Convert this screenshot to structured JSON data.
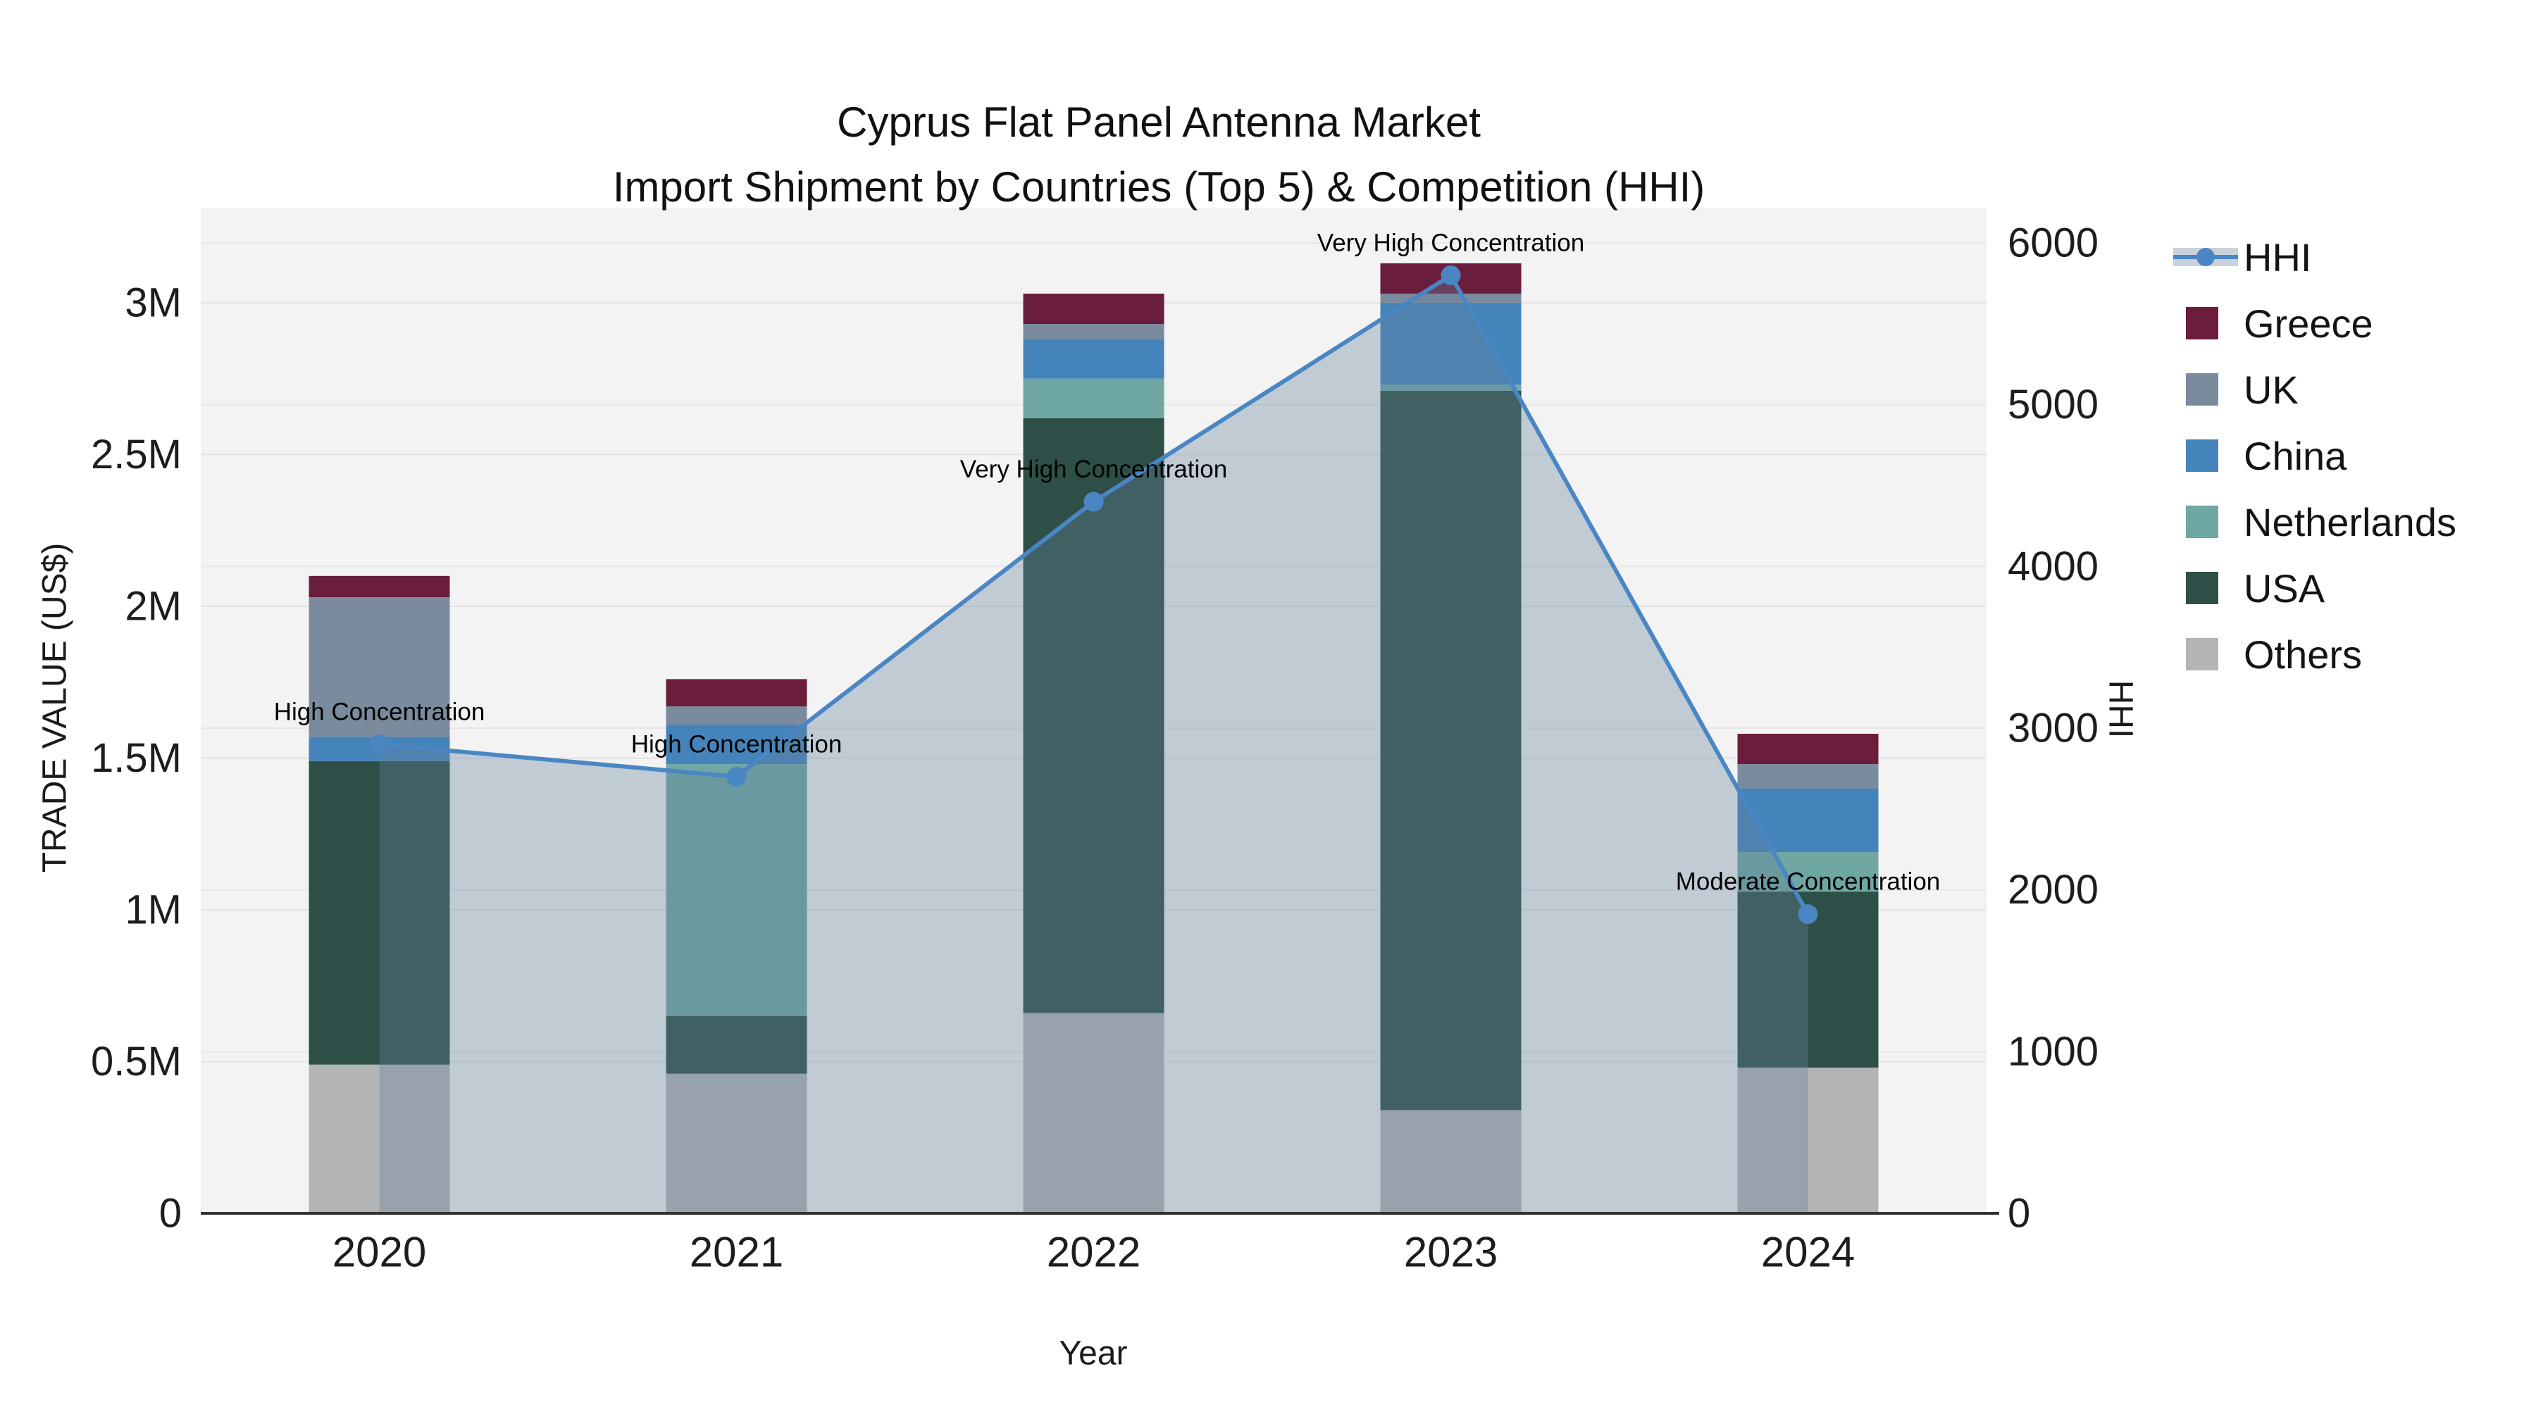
{
  "title": {
    "line1": "Cyprus Flat Panel Antenna Market",
    "line2": "Import Shipment by Countries (Top 5) & Competition (HHI)"
  },
  "axes": {
    "y_left": {
      "title": "TRADE VALUE (US$)",
      "tick_labels": [
        "0",
        "0.5M",
        "1M",
        "1.5M",
        "2M",
        "2.5M",
        "3M"
      ],
      "tick_values": [
        0,
        500000,
        1000000,
        1500000,
        2000000,
        2500000,
        3000000
      ]
    },
    "y_right": {
      "title": "HHI",
      "tick_labels": [
        "0",
        "1000",
        "2000",
        "3000",
        "4000",
        "5000",
        "6000"
      ],
      "tick_values": [
        0,
        1000,
        2000,
        3000,
        4000,
        5000,
        6000
      ]
    },
    "x": {
      "title": "Year"
    }
  },
  "legend": {
    "items": [
      {
        "label": "HHI",
        "type": "line",
        "color": "#4A86C4"
      },
      {
        "label": "Greece",
        "type": "square",
        "color": "#6B1D3D"
      },
      {
        "label": "UK",
        "type": "square",
        "color": "#7B8B9E"
      },
      {
        "label": "China",
        "type": "square",
        "color": "#4583BB"
      },
      {
        "label": "Netherlands",
        "type": "square",
        "color": "#6FA7A3"
      },
      {
        "label": "USA",
        "type": "square",
        "color": "#2D4F48"
      },
      {
        "label": "Others",
        "type": "square",
        "color": "#B2B4B5"
      }
    ]
  },
  "chart_data": {
    "type": "combo (stacked bar + line)",
    "title": "Cyprus Flat Panel Antenna Market — Import Shipment by Countries (Top 5) & Competition (HHI)",
    "categories": [
      "2020",
      "2021",
      "2022",
      "2023",
      "2024"
    ],
    "xlabel": "Year",
    "ylabel_left": "TRADE VALUE (US$)",
    "ylabel_right": "HHI",
    "ylim_left": [
      0,
      3313000
    ],
    "ylim_right": [
      0,
      6218
    ],
    "grid": true,
    "legend_position": "right",
    "stack_bottom_to_top": [
      "Others",
      "USA",
      "Netherlands",
      "China",
      "UK",
      "Greece"
    ],
    "series": [
      {
        "name": "Greece",
        "color": "#6B1D3D",
        "values": [
          70000,
          90000,
          100000,
          100000,
          100000
        ]
      },
      {
        "name": "UK",
        "color": "#7B8B9E",
        "values": [
          460000,
          60000,
          50000,
          30000,
          80000
        ]
      },
      {
        "name": "China",
        "color": "#4583BB",
        "values": [
          80000,
          130000,
          130000,
          270000,
          210000
        ]
      },
      {
        "name": "Netherlands",
        "color": "#6FA7A3",
        "values": [
          0,
          830000,
          130000,
          20000,
          130000
        ]
      },
      {
        "name": "USA",
        "color": "#2D4F48",
        "values": [
          1000000,
          190000,
          1960000,
          2370000,
          580000
        ]
      },
      {
        "name": "Others",
        "color": "#B2B4B5",
        "values": [
          490000,
          460000,
          660000,
          340000,
          480000
        ]
      }
    ],
    "hhi_line": {
      "name": "HHI",
      "color": "#4A86C4",
      "area_fill": "rgba(100,130,155,0.35)",
      "values": [
        2900,
        2700,
        4400,
        5800,
        1850
      ]
    },
    "annotations": [
      {
        "category": "2020",
        "text": "High Concentration"
      },
      {
        "category": "2021",
        "text": "High Concentration"
      },
      {
        "category": "2022",
        "text": "Very High Concentration"
      },
      {
        "category": "2023",
        "text": "Very High Concentration"
      },
      {
        "category": "2024",
        "text": "Moderate Concentration"
      }
    ]
  }
}
